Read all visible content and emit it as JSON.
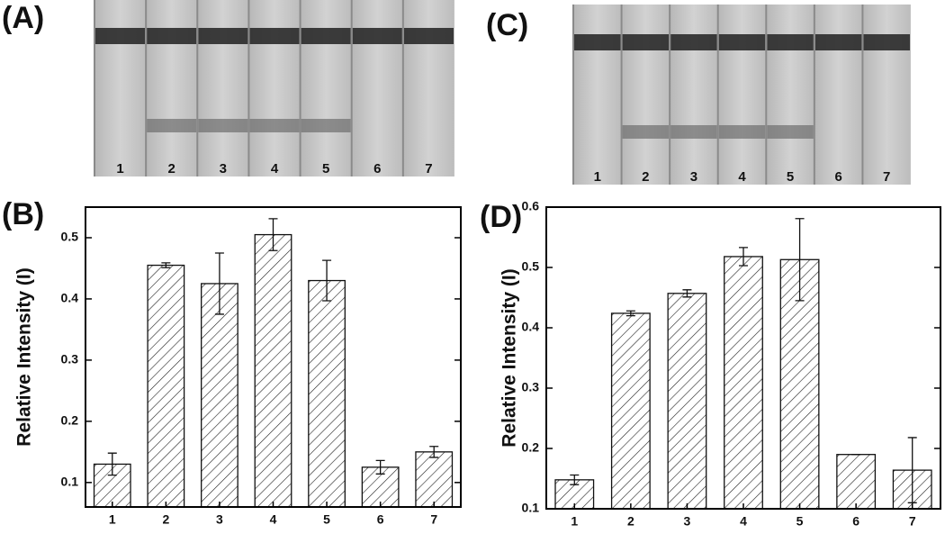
{
  "panels": {
    "A": "(A)",
    "B": "(B)",
    "C": "(C)",
    "D": "(D)"
  },
  "strips": [
    {
      "lanes": [
        "1",
        "2",
        "3",
        "4",
        "5",
        "6",
        "7"
      ]
    },
    {
      "lanes": [
        "1",
        "2",
        "3",
        "4",
        "5",
        "6",
        "7"
      ]
    }
  ],
  "chart_data": [
    {
      "type": "bar",
      "y_label": "Relative Intensity (I)",
      "categories": [
        "1",
        "2",
        "3",
        "4",
        "5",
        "6",
        "7"
      ],
      "values": [
        0.13,
        0.455,
        0.425,
        0.505,
        0.43,
        0.125,
        0.15
      ],
      "errors": [
        0.018,
        0.004,
        0.05,
        0.026,
        0.033,
        0.011,
        0.009
      ],
      "ylim": [
        0.06,
        0.55
      ],
      "yticks": [
        0.1,
        0.2,
        0.3,
        0.4,
        0.5
      ]
    },
    {
      "type": "bar",
      "y_label": "Relative Intensity (I)",
      "categories": [
        "1",
        "2",
        "3",
        "4",
        "5",
        "6",
        "7"
      ],
      "values": [
        0.148,
        0.424,
        0.457,
        0.518,
        0.513,
        0.19,
        0.164
      ],
      "errors": [
        0.008,
        0.004,
        0.006,
        0.015,
        0.068,
        0,
        0.054
      ],
      "ylim": [
        0.1,
        0.6
      ],
      "yticks": [
        0.1,
        0.2,
        0.3,
        0.4,
        0.5,
        0.6
      ]
    }
  ]
}
